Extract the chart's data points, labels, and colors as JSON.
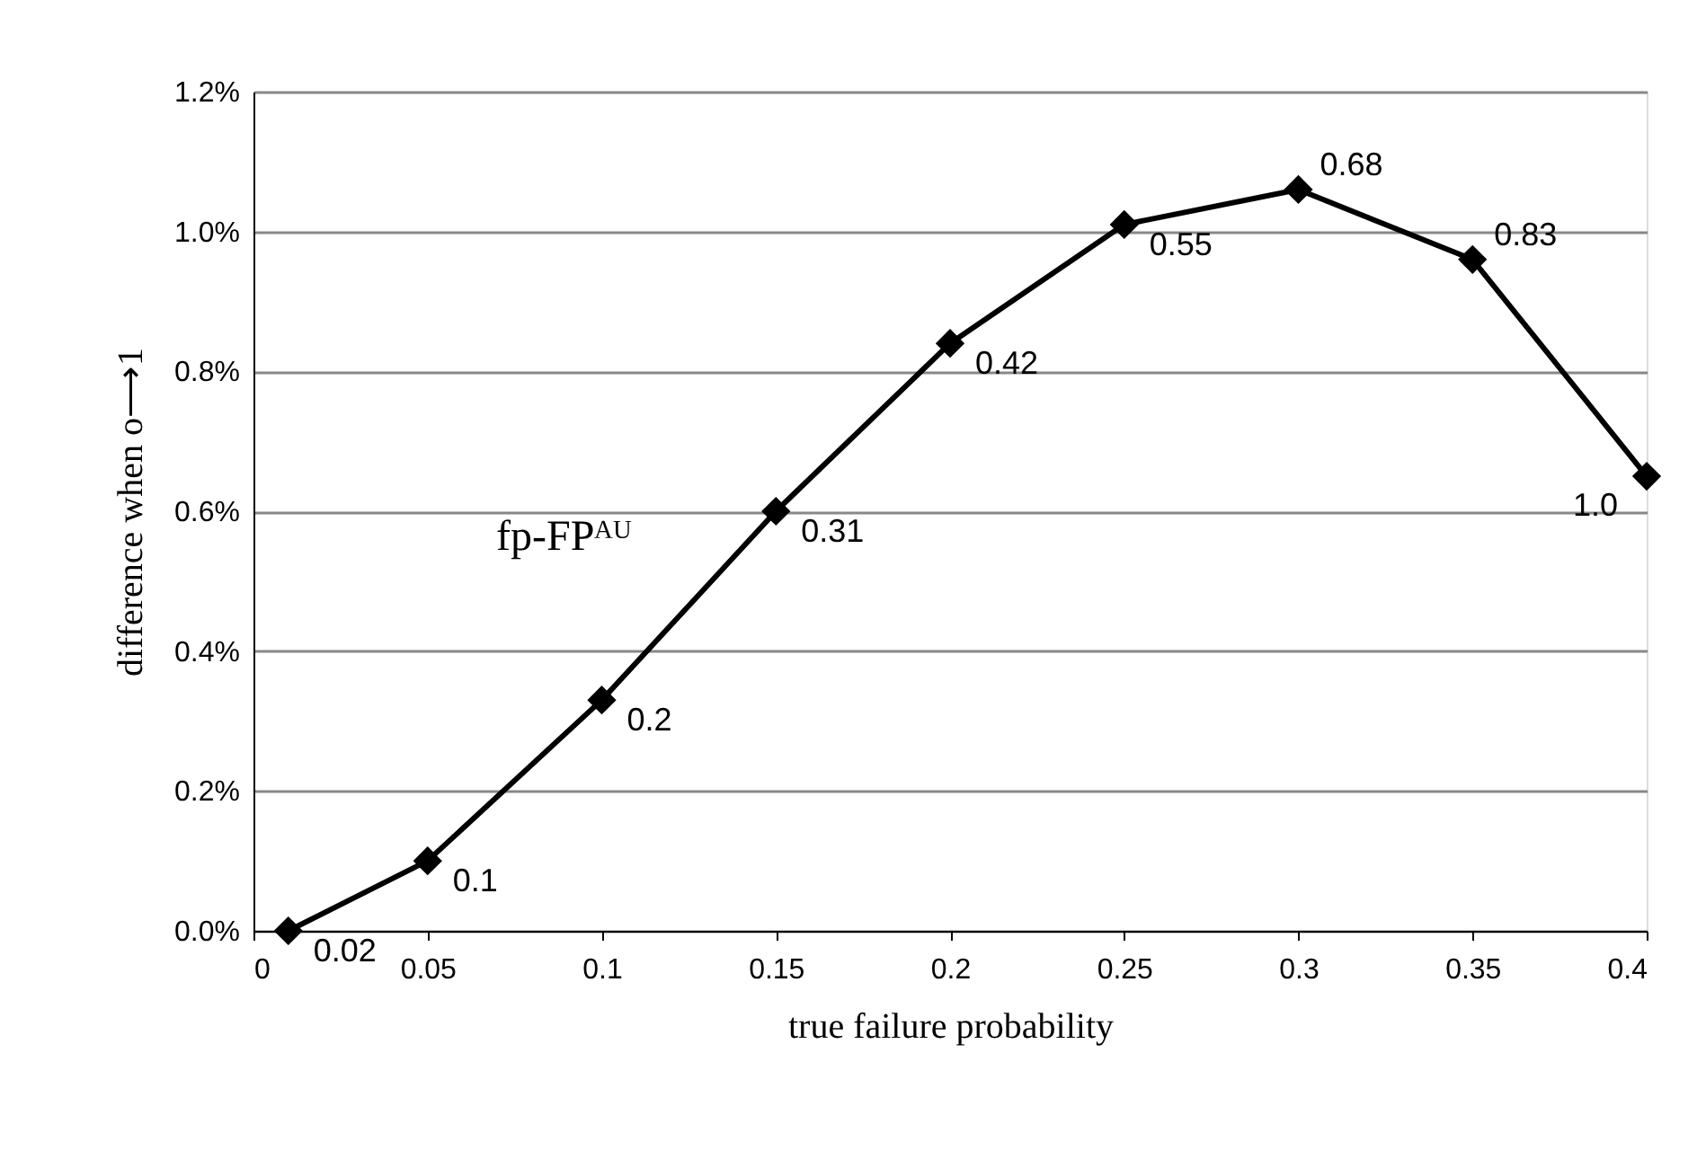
{
  "chart_data": {
    "type": "line",
    "xlabel": "true failure probability",
    "ylabel": "difference when o⟶1",
    "x": [
      0.01,
      0.05,
      0.1,
      0.15,
      0.2,
      0.25,
      0.3,
      0.35,
      0.4
    ],
    "series": [
      {
        "color": "#000000",
        "values": [
          0.0,
          0.1,
          0.33,
          0.6,
          0.84,
          1.01,
          1.06,
          0.96,
          0.65
        ]
      }
    ],
    "xlim": [
      0,
      0.4
    ],
    "xticks": [
      0,
      0.05,
      0.1,
      0.15,
      0.2,
      0.25,
      0.3,
      0.35,
      0.4
    ],
    "ylim": [
      0,
      1.2
    ],
    "yticks": [
      {
        "value": 0,
        "label": "0.0%"
      },
      {
        "value": 0.2,
        "label": "0.2%"
      },
      {
        "value": 0.4,
        "label": "0.4%"
      },
      {
        "value": 0.6,
        "label": "0.6%"
      },
      {
        "value": 0.8,
        "label": "0.8%"
      },
      {
        "value": 1.0,
        "label": "1.0%"
      },
      {
        "value": 1.2,
        "label": "1.2%"
      }
    ],
    "grid": "y",
    "marker": "diamond",
    "line_style": "solid",
    "annotations": [
      "fp-FPᴬᵁ",
      {
        "text": "0.02",
        "x": 0.01,
        "y": 0.0
      },
      {
        "text": "0.1",
        "x": 0.05,
        "y": 0.1
      },
      {
        "text": "0.2",
        "x": 0.1,
        "y": 0.33
      },
      {
        "text": "0.31",
        "x": 0.15,
        "y": 0.6
      },
      {
        "text": "0.42",
        "x": 0.2,
        "y": 0.84
      },
      {
        "text": "0.55",
        "x": 0.25,
        "y": 1.01
      },
      {
        "text": "0.68",
        "x": 0.3,
        "y": 1.06
      },
      {
        "text": "0.83",
        "x": 0.35,
        "y": 0.96
      },
      {
        "text": "1.0",
        "x": 0.4,
        "y": 0.65
      }
    ]
  }
}
